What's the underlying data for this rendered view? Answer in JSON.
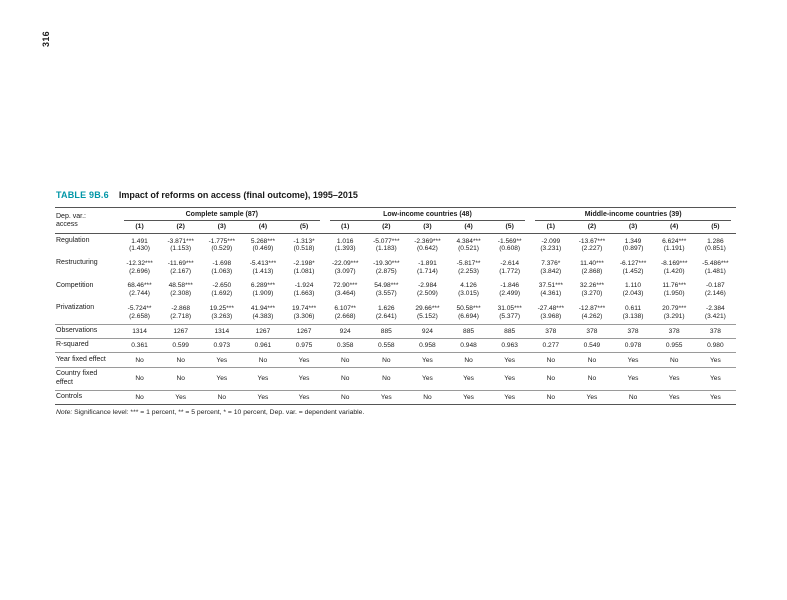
{
  "page": {
    "number": "316"
  },
  "colors": {
    "accent_teal": "#0096a7"
  },
  "table": {
    "label": "TABLE 9B.6",
    "title": "Impact of reforms on access (final outcome), 1995–2015",
    "header": {
      "dep_var_lines": [
        "Dep. var.:",
        "access"
      ],
      "groups": [
        {
          "label": "Complete sample (87)"
        },
        {
          "label": "Low-income countries (48)"
        },
        {
          "label": "Middle-income countries (39)"
        }
      ],
      "col_numbers": [
        "(1)",
        "(2)",
        "(3)",
        "(4)",
        "(5)"
      ]
    },
    "coef_rows": [
      {
        "label": "Regulation",
        "coef": [
          "1.491",
          "-3.871***",
          "-1.775***",
          "5.268***",
          "-1.313*",
          "1.016",
          "-5.077***",
          "-2.369***",
          "4.384***",
          "-1.569**",
          "-2.099",
          "-13.67***",
          "1.349",
          "6.624***",
          "1.286"
        ],
        "se": [
          "(1.430)",
          "(1.153)",
          "(0.529)",
          "(0.469)",
          "(0.518)",
          "(1.393)",
          "(1.183)",
          "(0.642)",
          "(0.521)",
          "(0.608)",
          "(3.231)",
          "(2.227)",
          "(0.897)",
          "(1.191)",
          "(0.851)"
        ]
      },
      {
        "label": "Restructuring",
        "coef": [
          "-12.32***",
          "-11.69***",
          "-1.698",
          "-5.413***",
          "-2.198*",
          "-22.09***",
          "-19.30***",
          "-1.891",
          "-5.817**",
          "-2.614",
          "7.376*",
          "11.40***",
          "-6.127***",
          "-8.169***",
          "-5.486***"
        ],
        "se": [
          "(2.696)",
          "(2.167)",
          "(1.063)",
          "(1.413)",
          "(1.081)",
          "(3.097)",
          "(2.875)",
          "(1.714)",
          "(2.253)",
          "(1.772)",
          "(3.842)",
          "(2.868)",
          "(1.452)",
          "(1.420)",
          "(1.481)"
        ]
      },
      {
        "label": "Competition",
        "coef": [
          "68.46***",
          "48.58***",
          "-2.650",
          "6.289***",
          "-1.924",
          "72.90***",
          "54.98***",
          "-2.984",
          "4.126",
          "-1.846",
          "37.51***",
          "32.26***",
          "1.110",
          "11.76***",
          "-0.187"
        ],
        "se": [
          "(2.744)",
          "(2.308)",
          "(1.692)",
          "(1.909)",
          "(1.663)",
          "(3.464)",
          "(3.557)",
          "(2.509)",
          "(3.015)",
          "(2.499)",
          "(4.361)",
          "(3.270)",
          "(2.043)",
          "(1.950)",
          "(2.146)"
        ]
      },
      {
        "label": "Privatization",
        "coef": [
          "-5.724**",
          "-2.868",
          "19.25***",
          "41.94***",
          "19.74***",
          "6.107**",
          "1.626",
          "29.66***",
          "50.58***",
          "31.05***",
          "-27.48***",
          "-12.87***",
          "0.611",
          "20.79***",
          "-2.384"
        ],
        "se": [
          "(2.658)",
          "(2.718)",
          "(3.263)",
          "(4.383)",
          "(3.306)",
          "(2.668)",
          "(2.641)",
          "(5.152)",
          "(6.694)",
          "(5.377)",
          "(3.968)",
          "(4.262)",
          "(3.138)",
          "(3.291)",
          "(3.421)"
        ]
      }
    ],
    "stat_rows": [
      {
        "label": "Observations",
        "values": [
          "1314",
          "1267",
          "1314",
          "1267",
          "1267",
          "924",
          "885",
          "924",
          "885",
          "885",
          "378",
          "378",
          "378",
          "378",
          "378"
        ]
      },
      {
        "label": "R-squared",
        "values": [
          "0.361",
          "0.599",
          "0.973",
          "0.961",
          "0.975",
          "0.358",
          "0.558",
          "0.958",
          "0.948",
          "0.963",
          "0.277",
          "0.549",
          "0.978",
          "0.955",
          "0.980"
        ]
      },
      {
        "label": "Year fixed effect",
        "values": [
          "No",
          "No",
          "Yes",
          "No",
          "Yes",
          "No",
          "No",
          "Yes",
          "No",
          "Yes",
          "No",
          "No",
          "Yes",
          "No",
          "Yes"
        ]
      },
      {
        "label": "Country fixed effect",
        "values": [
          "No",
          "No",
          "Yes",
          "Yes",
          "Yes",
          "No",
          "No",
          "Yes",
          "Yes",
          "Yes",
          "No",
          "No",
          "Yes",
          "Yes",
          "Yes"
        ]
      },
      {
        "label": "Controls",
        "values": [
          "No",
          "Yes",
          "No",
          "Yes",
          "Yes",
          "No",
          "Yes",
          "No",
          "Yes",
          "Yes",
          "No",
          "Yes",
          "No",
          "Yes",
          "Yes"
        ]
      }
    ],
    "note_label": "Note:",
    "note_text": "Significance level: *** = 1 percent, ** = 5 percent, * = 10 percent, Dep. var. = dependent variable."
  }
}
